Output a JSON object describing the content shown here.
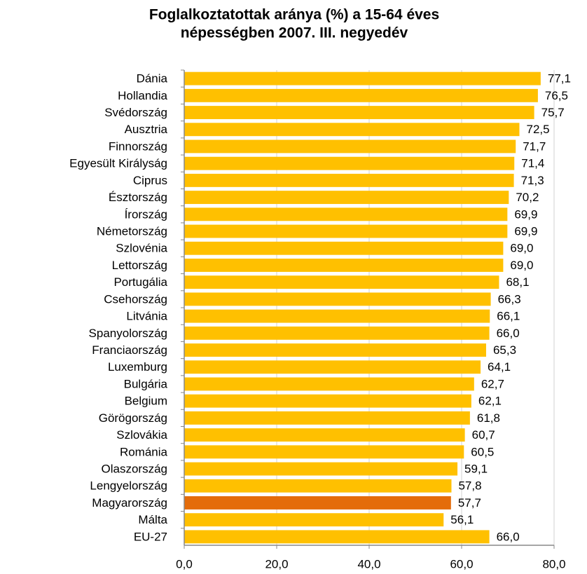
{
  "chart_data": {
    "type": "bar",
    "orientation": "horizontal",
    "title": [
      "Foglalkoztatottak aránya (%) a 15-64 éves",
      "népességben 2007. III. negyedév"
    ],
    "categories": [
      "Dánia",
      "Hollandia",
      "Svédország",
      "Ausztria",
      "Finnország",
      "Egyesült Királyság",
      "Ciprus",
      "Észtország",
      "Írország",
      "Németország",
      "Szlovénia",
      "Lettország",
      "Portugália",
      "Csehország",
      "Litvánia",
      "Spanyolország",
      "Franciaország",
      "Luxemburg",
      "Bulgária",
      "Belgium",
      "Görögország",
      "Szlovákia",
      "Románia",
      "Olaszország",
      "Lengyelország",
      "Magyarország",
      "Málta",
      "EU-27"
    ],
    "values": [
      77.1,
      76.5,
      75.7,
      72.5,
      71.7,
      71.4,
      71.3,
      70.2,
      69.9,
      69.9,
      69.0,
      69.0,
      68.1,
      66.3,
      66.1,
      66.0,
      65.3,
      64.1,
      62.7,
      62.1,
      61.8,
      60.7,
      60.5,
      59.1,
      57.8,
      57.7,
      56.1,
      66.0
    ],
    "value_labels": [
      "77,1",
      "76,5",
      "75,7",
      "72,5",
      "71,7",
      "71,4",
      "71,3",
      "70,2",
      "69,9",
      "69,9",
      "69,0",
      "69,0",
      "68,1",
      "66,3",
      "66,1",
      "66,0",
      "65,3",
      "64,1",
      "62,7",
      "62,1",
      "61,8",
      "60,7",
      "60,5",
      "59,1",
      "57,8",
      "57,7",
      "56,1",
      "66,0"
    ],
    "colors": [
      "#ffc000",
      "#ffc000",
      "#ffc000",
      "#ffc000",
      "#ffc000",
      "#ffc000",
      "#ffc000",
      "#ffc000",
      "#ffc000",
      "#ffc000",
      "#ffc000",
      "#ffc000",
      "#ffc000",
      "#ffc000",
      "#ffc000",
      "#ffc000",
      "#ffc000",
      "#ffc000",
      "#ffc000",
      "#ffc000",
      "#ffc000",
      "#ffc000",
      "#ffc000",
      "#ffc000",
      "#ffc000",
      "#e46c0a",
      "#ffc000",
      "#ffc000"
    ],
    "xlim": [
      0,
      80
    ],
    "xticks": [
      {
        "value": 0,
        "label": "0,0"
      },
      {
        "value": 20,
        "label": "20,0"
      },
      {
        "value": 40,
        "label": "40,0"
      },
      {
        "value": 60,
        "label": "60,0"
      },
      {
        "value": 80,
        "label": "80,0"
      }
    ],
    "grid": true
  }
}
